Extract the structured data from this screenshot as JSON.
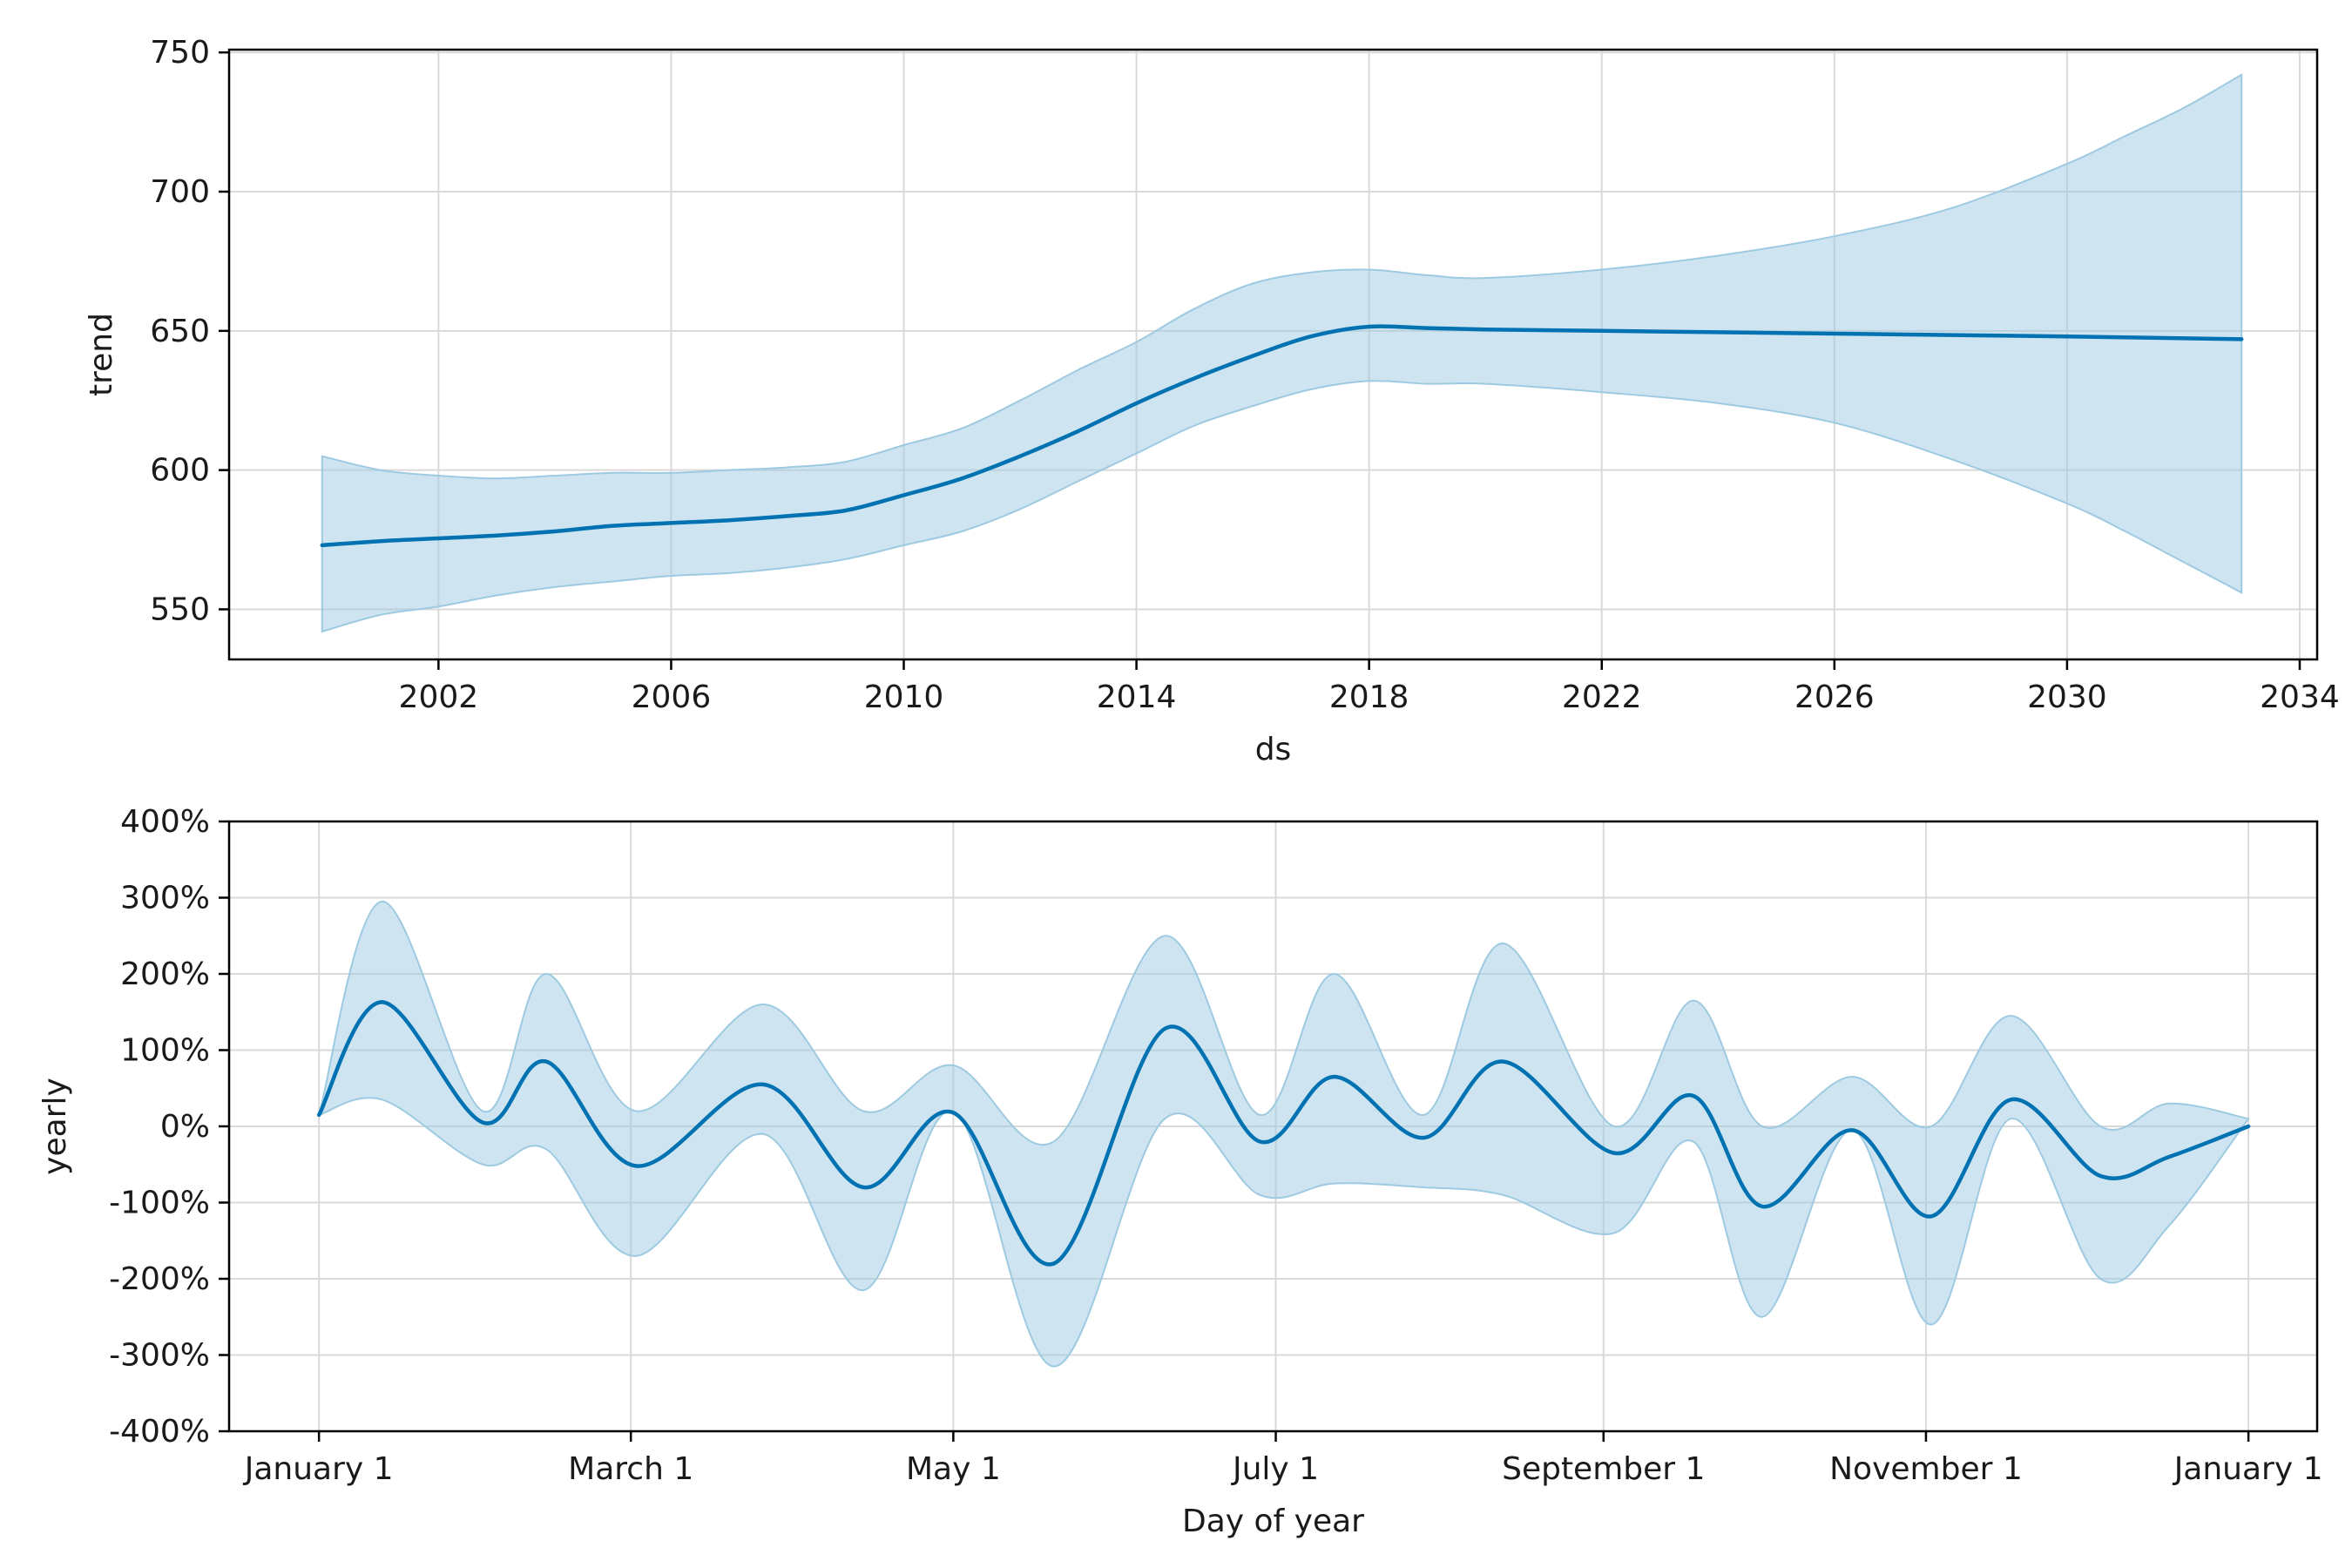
{
  "figure": {
    "background": "#ffffff",
    "line_color": "#0072B2",
    "band_color": "#9ecae1",
    "grid_color": "#d9d9d9"
  },
  "chart_data": [
    {
      "type": "line",
      "name": "trend",
      "xlabel": "ds",
      "ylabel": "trend",
      "xlim": [
        1998.4,
        2034.3
      ],
      "ylim": [
        532,
        751
      ],
      "x_ticks": [
        2002,
        2006,
        2010,
        2014,
        2018,
        2022,
        2026,
        2030,
        2034
      ],
      "x_tick_labels": [
        "2002",
        "2006",
        "2010",
        "2014",
        "2018",
        "2022",
        "2026",
        "2030",
        "2034"
      ],
      "y_ticks": [
        550,
        600,
        650,
        700,
        750
      ],
      "y_tick_labels": [
        "550",
        "600",
        "650",
        "700",
        "750"
      ],
      "grid": true,
      "series": [
        {
          "name": "trend",
          "x": [
            2000,
            2001,
            2002,
            2003,
            2004,
            2005,
            2006,
            2007,
            2008,
            2009,
            2010,
            2011,
            2012,
            2013,
            2014,
            2015,
            2016,
            2017,
            2018,
            2019,
            2020,
            2022,
            2024,
            2026,
            2028,
            2030,
            2033
          ],
          "y": [
            573,
            574.5,
            575.5,
            576.5,
            578,
            580,
            581,
            582,
            583.5,
            585.5,
            591,
            597,
            605,
            614,
            624,
            633,
            641,
            648,
            651.5,
            651,
            650.5,
            650,
            649.5,
            649,
            648.5,
            648,
            647
          ]
        }
      ],
      "bands": [
        {
          "name": "trend uncertainty",
          "x": [
            2000,
            2001,
            2002,
            2003,
            2004,
            2005,
            2006,
            2007,
            2008,
            2009,
            2010,
            2011,
            2012,
            2013,
            2014,
            2015,
            2016,
            2017,
            2018,
            2019,
            2020,
            2022,
            2024,
            2026,
            2028,
            2030,
            2031,
            2032,
            2033
          ],
          "lower": [
            542,
            548,
            551,
            555,
            558,
            560,
            562,
            563,
            565,
            568,
            573,
            578,
            586,
            596,
            606,
            616,
            623,
            629,
            632,
            631,
            631,
            628,
            624,
            617,
            604,
            588,
            578,
            567,
            556
          ],
          "upper": [
            605,
            600,
            598,
            597,
            598,
            599,
            599,
            600,
            601,
            603,
            609,
            615,
            625,
            636,
            646,
            658,
            667,
            671,
            672,
            670,
            669,
            672,
            677,
            684,
            694,
            710,
            720,
            730,
            742
          ]
        }
      ]
    },
    {
      "type": "line",
      "name": "yearly",
      "xlabel": "Day of year",
      "ylabel": "yearly",
      "xlim": [
        -17,
        378
      ],
      "ylim": [
        -400,
        400
      ],
      "x_ticks": [
        0,
        59,
        120,
        181,
        243,
        304,
        365
      ],
      "x_tick_labels": [
        "January 1",
        "March 1",
        "May 1",
        "July 1",
        "September 1",
        "November 1",
        "January 1"
      ],
      "y_ticks": [
        -400,
        -300,
        -200,
        -100,
        0,
        100,
        200,
        300,
        400
      ],
      "y_tick_labels": [
        "-400%",
        "-300%",
        "-200%",
        "-100%",
        "0%",
        "100%",
        "200%",
        "300%",
        "400%"
      ],
      "grid": true,
      "series": [
        {
          "name": "yearly",
          "x": [
            0,
            12,
            31,
            43,
            60,
            84,
            103,
            120,
            139,
            160,
            178,
            192,
            209,
            224,
            245,
            260,
            273,
            290,
            305,
            320,
            337,
            350,
            365
          ],
          "y": [
            15,
            163,
            5,
            85,
            -52,
            55,
            -80,
            18,
            -180,
            128,
            -20,
            65,
            -15,
            85,
            -35,
            40,
            -105,
            -5,
            -118,
            35,
            -65,
            -40,
            0
          ]
        }
      ],
      "bands": [
        {
          "name": "yearly uncertainty",
          "x": [
            0,
            12,
            31,
            43,
            60,
            84,
            103,
            120,
            139,
            160,
            178,
            192,
            209,
            224,
            245,
            260,
            273,
            290,
            305,
            320,
            337,
            350,
            365
          ],
          "lower": [
            15,
            35,
            -50,
            -30,
            -170,
            -10,
            -215,
            20,
            -315,
            10,
            -90,
            -75,
            -80,
            -90,
            -140,
            -20,
            -250,
            -5,
            -260,
            10,
            -200,
            -130,
            10
          ],
          "upper": [
            15,
            295,
            20,
            200,
            20,
            160,
            20,
            80,
            -20,
            250,
            15,
            200,
            15,
            240,
            0,
            165,
            0,
            65,
            0,
            145,
            0,
            30,
            10
          ]
        }
      ]
    }
  ]
}
